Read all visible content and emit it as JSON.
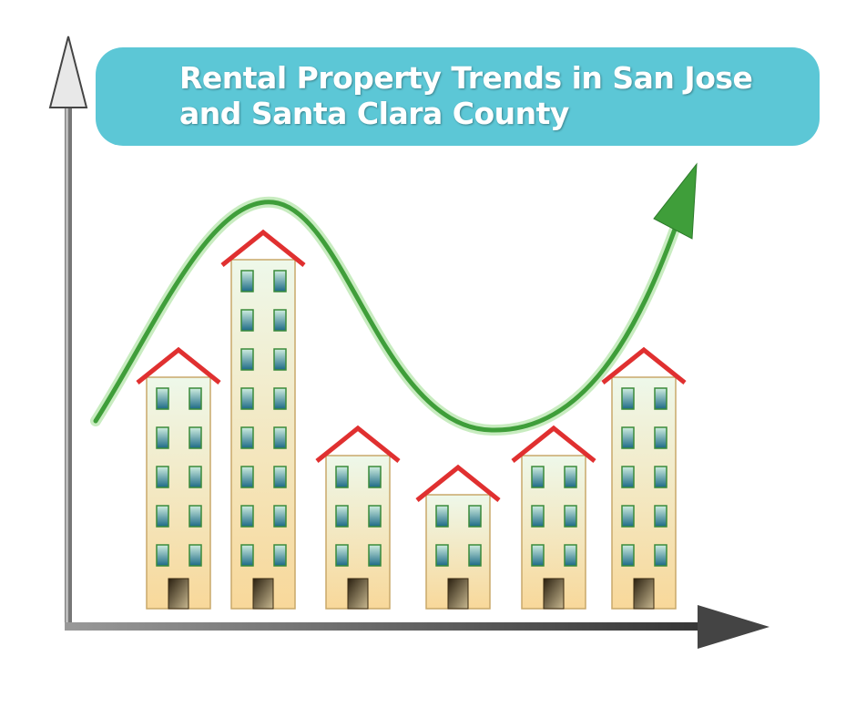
{
  "title": {
    "line1": "Rental Property Trends in San Jose",
    "line2": "and Santa Clara County",
    "background": "#5cc7d6"
  },
  "buildings": [
    {
      "floors": 5
    },
    {
      "floors": 8
    },
    {
      "floors": 3
    },
    {
      "floors": 2
    },
    {
      "floors": 3
    },
    {
      "floors": 5
    }
  ],
  "colors": {
    "roof": "#e03030",
    "building": "#f8dca0",
    "trend": "#3f9e3a",
    "axis": "#555555"
  }
}
